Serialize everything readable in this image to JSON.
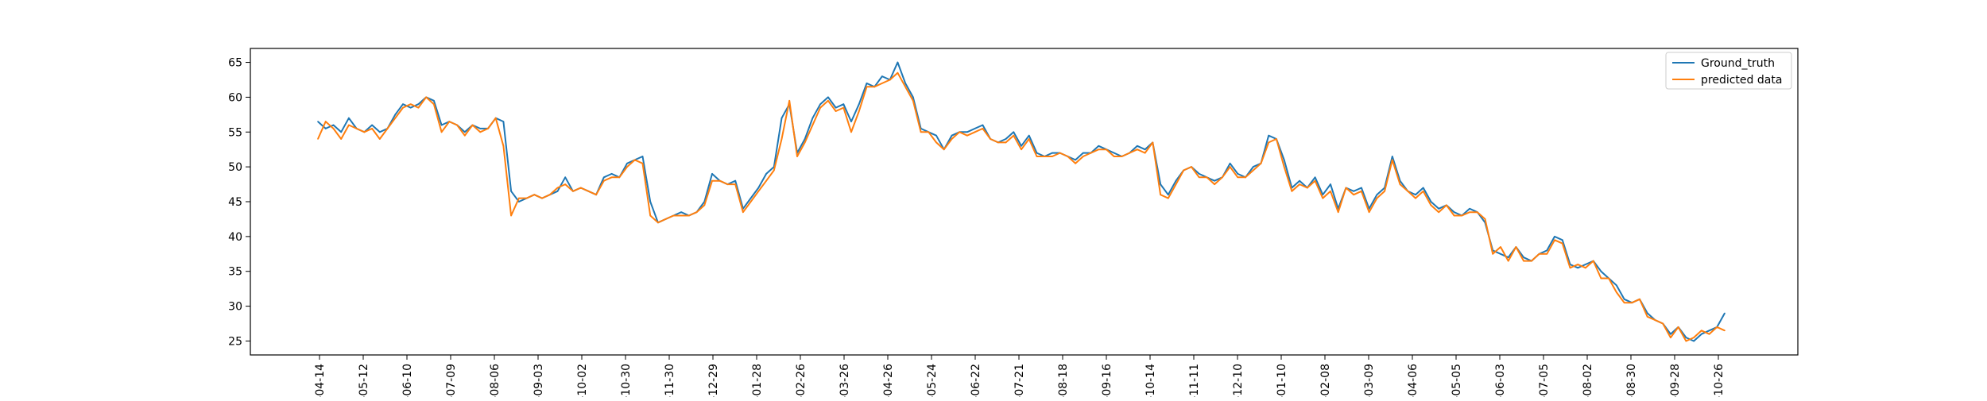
{
  "chart_data": {
    "type": "line",
    "title": "",
    "xlabel": "",
    "ylabel": "",
    "ylim": [
      23.0,
      67.0
    ],
    "yticks": [
      25,
      30,
      35,
      40,
      45,
      50,
      55,
      60,
      65
    ],
    "xticks": [
      "-04-14",
      "-05-12",
      "-06-10",
      "-07-09",
      "-08-06",
      "-09-03",
      "-10-02",
      "-10-30",
      "-11-30",
      "-12-29",
      "-01-28",
      "-02-26",
      "-03-26",
      "-04-26",
      "-05-24",
      "-06-22",
      "-07-21",
      "-08-18",
      "-09-16",
      "-10-14",
      "-11-11",
      "-12-10",
      "-01-10",
      "-02-08",
      "-03-09",
      "-04-06",
      "-05-05",
      "-06-03",
      "-07-05",
      "-08-02",
      "-08-30",
      "-09-28",
      "-10-26"
    ],
    "legend_position": "top-right",
    "grid": false,
    "series": [
      {
        "name": "Ground_truth",
        "color": "#1f77b4",
        "values": [
          56.5,
          55.5,
          56.0,
          55.0,
          57.0,
          55.5,
          55.0,
          56.0,
          55.0,
          55.5,
          57.5,
          59.0,
          58.5,
          59.0,
          60.0,
          59.5,
          56.0,
          56.5,
          56.0,
          55.0,
          56.0,
          55.5,
          55.5,
          57.0,
          56.5,
          46.5,
          45.0,
          45.5,
          46.0,
          45.5,
          46.0,
          46.5,
          48.5,
          46.5,
          47.0,
          46.5,
          46.0,
          48.5,
          49.0,
          48.5,
          50.5,
          51.0,
          51.5,
          45.0,
          42.0,
          42.5,
          43.0,
          43.5,
          43.0,
          43.5,
          45.0,
          49.0,
          48.0,
          47.5,
          48.0,
          44.0,
          45.5,
          47.0,
          49.0,
          50.0,
          57.0,
          59.0,
          52.0,
          54.0,
          57.0,
          59.0,
          60.0,
          58.5,
          59.0,
          56.5,
          59.0,
          62.0,
          61.5,
          63.0,
          62.5,
          65.0,
          62.0,
          60.0,
          55.5,
          55.0,
          54.5,
          52.5,
          54.5,
          55.0,
          55.0,
          55.5,
          56.0,
          54.0,
          53.5,
          54.0,
          55.0,
          53.0,
          54.5,
          52.0,
          51.5,
          52.0,
          52.0,
          51.5,
          51.0,
          52.0,
          52.0,
          53.0,
          52.5,
          52.0,
          51.5,
          52.0,
          53.0,
          52.5,
          53.5,
          47.5,
          46.0,
          48.0,
          49.5,
          50.0,
          49.0,
          48.5,
          48.0,
          48.5,
          50.5,
          49.0,
          48.5,
          50.0,
          50.5,
          54.5,
          54.0,
          51.0,
          47.0,
          48.0,
          47.0,
          48.5,
          46.0,
          47.5,
          44.0,
          47.0,
          46.5,
          47.0,
          44.0,
          46.0,
          47.0,
          51.5,
          48.0,
          46.5,
          46.0,
          47.0,
          45.0,
          44.0,
          44.5,
          43.5,
          43.0,
          44.0,
          43.5,
          42.0,
          38.0,
          37.5,
          37.0,
          38.5,
          37.0,
          36.5,
          37.5,
          38.0,
          40.0,
          39.5,
          36.0,
          35.5,
          36.0,
          36.5,
          35.0,
          34.0,
          33.0,
          31.0,
          30.5,
          31.0,
          29.0,
          28.0,
          27.5,
          26.0,
          27.0,
          25.5,
          25.0,
          26.0,
          26.5,
          27.0,
          29.0
        ]
      },
      {
        "name": "predicted data",
        "color": "#ff7f0e",
        "values": [
          54.0,
          56.5,
          55.5,
          54.0,
          56.0,
          55.5,
          55.0,
          55.5,
          54.0,
          55.5,
          57.0,
          58.5,
          59.0,
          58.5,
          60.0,
          59.0,
          55.0,
          56.5,
          56.0,
          54.5,
          56.0,
          55.0,
          55.5,
          57.0,
          53.0,
          43.0,
          45.5,
          45.5,
          46.0,
          45.5,
          46.0,
          47.0,
          47.5,
          46.5,
          47.0,
          46.5,
          46.0,
          48.0,
          48.5,
          48.5,
          50.0,
          51.0,
          50.5,
          43.0,
          42.0,
          42.5,
          43.0,
          43.0,
          43.0,
          43.5,
          44.5,
          48.0,
          48.0,
          47.5,
          47.5,
          43.5,
          45.0,
          46.5,
          48.0,
          49.5,
          54.0,
          59.5,
          51.5,
          53.5,
          56.0,
          58.5,
          59.5,
          58.0,
          58.5,
          55.0,
          58.0,
          61.5,
          61.5,
          62.0,
          62.5,
          63.5,
          61.5,
          59.5,
          55.0,
          55.0,
          53.5,
          52.5,
          54.0,
          55.0,
          54.5,
          55.0,
          55.5,
          54.0,
          53.5,
          53.5,
          54.5,
          52.5,
          54.0,
          51.5,
          51.5,
          51.5,
          52.0,
          51.5,
          50.5,
          51.5,
          52.0,
          52.5,
          52.5,
          51.5,
          51.5,
          52.0,
          52.5,
          52.0,
          53.5,
          46.0,
          45.5,
          47.5,
          49.5,
          50.0,
          48.5,
          48.5,
          47.5,
          48.5,
          50.0,
          48.5,
          48.5,
          49.5,
          50.5,
          53.5,
          54.0,
          50.0,
          46.5,
          47.5,
          47.0,
          48.0,
          45.5,
          46.5,
          43.5,
          47.0,
          46.0,
          46.5,
          43.5,
          45.5,
          46.5,
          51.0,
          47.5,
          46.5,
          45.5,
          46.5,
          44.5,
          43.5,
          44.5,
          43.0,
          43.0,
          43.5,
          43.5,
          42.5,
          37.5,
          38.5,
          36.5,
          38.5,
          36.5,
          36.5,
          37.5,
          37.5,
          39.5,
          39.0,
          35.5,
          36.0,
          35.5,
          36.5,
          34.0,
          34.0,
          32.0,
          30.5,
          30.5,
          31.0,
          28.5,
          28.0,
          27.5,
          25.5,
          27.0,
          25.0,
          25.5,
          26.5,
          26.0,
          27.0,
          26.5
        ]
      }
    ]
  }
}
